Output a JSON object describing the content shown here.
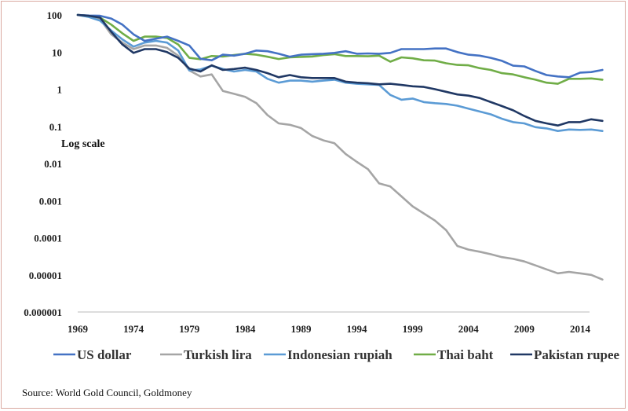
{
  "chart_data": {
    "type": "line",
    "yscale": "log",
    "annotation": "Log scale",
    "source": "Source: World Gold Council, Goldmoney",
    "xlim": [
      1969,
      2016
    ],
    "ylim": [
      1e-06,
      100
    ],
    "x_ticks": [
      "1969",
      "1974",
      "1979",
      "1984",
      "1989",
      "1994",
      "1999",
      "2004",
      "2009",
      "2014"
    ],
    "y_ticks": [
      "100",
      "10",
      "1",
      "0.1",
      "0.01",
      "0.001",
      "0.0001",
      "0.00001",
      "0.000001"
    ],
    "grid": false,
    "legend_position": "bottom",
    "colors": {
      "US dollar": "#4472c4",
      "Turkish lira": "#a5a5a5",
      "Indonesian rupiah": "#5b9bd5",
      "Thai baht": "#70ad47",
      "Pakistan rupee": "#203864"
    },
    "x": [
      1969,
      1970,
      1971,
      1972,
      1973,
      1974,
      1975,
      1976,
      1977,
      1978,
      1979,
      1980,
      1981,
      1982,
      1983,
      1984,
      1985,
      1986,
      1987,
      1988,
      1989,
      1990,
      1991,
      1992,
      1993,
      1994,
      1995,
      1996,
      1997,
      1998,
      1999,
      2000,
      2001,
      2002,
      2003,
      2004,
      2005,
      2006,
      2007,
      2008,
      2009,
      2010,
      2011,
      2012,
      2013,
      2014,
      2015,
      2016
    ],
    "series": [
      {
        "name": "US dollar",
        "values": [
          100,
          96,
          95,
          80,
          55,
          30,
          20,
          23,
          26,
          20,
          15,
          6.6,
          6.0,
          8.5,
          8.0,
          9.0,
          11.0,
          10.5,
          9.0,
          7.5,
          8.5,
          8.8,
          9.0,
          9.5,
          10.5,
          9.0,
          9.2,
          9.0,
          9.5,
          12.0,
          12.0,
          12.0,
          12.5,
          12.5,
          10.0,
          8.5,
          8.0,
          7.0,
          5.8,
          4.3,
          4.1,
          3.1,
          2.4,
          2.2,
          2.1,
          2.8,
          2.9,
          3.3
        ]
      },
      {
        "name": "Turkish lira",
        "values": [
          100,
          90,
          78,
          30,
          18,
          12,
          15,
          15,
          13,
          8,
          3.2,
          2.2,
          2.5,
          0.9,
          0.75,
          0.62,
          0.42,
          0.2,
          0.12,
          0.11,
          0.09,
          0.055,
          0.042,
          0.035,
          0.018,
          0.011,
          0.007,
          0.0029,
          0.0024,
          0.0013,
          0.0007,
          0.00045,
          0.00029,
          0.00016,
          6e-05,
          4.8e-05,
          4.2e-05,
          3.6e-05,
          3e-05,
          2.7e-05,
          2.3e-05,
          1.8e-05,
          1.4e-05,
          1.1e-05,
          1.2e-05,
          1.1e-05,
          1e-05,
          7.5e-06
        ]
      },
      {
        "name": "Indonesian rupiah",
        "values": [
          100,
          88,
          70,
          38,
          22,
          14,
          18,
          20,
          18,
          11,
          3.2,
          3.4,
          4.3,
          3.5,
          3.0,
          3.3,
          3.0,
          1.9,
          1.5,
          1.7,
          1.7,
          1.6,
          1.7,
          1.8,
          1.5,
          1.4,
          1.35,
          1.3,
          0.7,
          0.52,
          0.56,
          0.45,
          0.42,
          0.4,
          0.36,
          0.3,
          0.25,
          0.21,
          0.16,
          0.13,
          0.12,
          0.095,
          0.088,
          0.075,
          0.082,
          0.08,
          0.082,
          0.075
        ]
      },
      {
        "name": "Thai baht",
        "values": [
          100,
          95,
          85,
          55,
          32,
          20,
          26,
          26,
          24,
          16,
          7,
          6.4,
          7.8,
          7.6,
          8.3,
          9.0,
          8.5,
          7.5,
          6.5,
          7.2,
          7.4,
          7.6,
          8.3,
          8.8,
          7.8,
          7.8,
          7.7,
          8.0,
          5.5,
          7.2,
          6.8,
          6.0,
          5.9,
          5.0,
          4.5,
          4.4,
          3.7,
          3.3,
          2.7,
          2.5,
          2.1,
          1.8,
          1.5,
          1.4,
          1.9,
          1.9,
          1.95,
          1.8
        ]
      },
      {
        "name": "Pakistan rupee",
        "values": [
          100,
          95,
          85,
          35,
          16,
          9.5,
          12,
          12,
          10,
          7,
          3.6,
          3.0,
          4.4,
          3.3,
          3.5,
          3.8,
          3.3,
          2.7,
          2.1,
          2.4,
          2.1,
          2.0,
          2.0,
          2.0,
          1.6,
          1.5,
          1.45,
          1.35,
          1.4,
          1.3,
          1.2,
          1.15,
          1.0,
          0.85,
          0.72,
          0.67,
          0.58,
          0.45,
          0.35,
          0.27,
          0.19,
          0.14,
          0.12,
          0.105,
          0.13,
          0.13,
          0.155,
          0.14
        ]
      }
    ]
  }
}
